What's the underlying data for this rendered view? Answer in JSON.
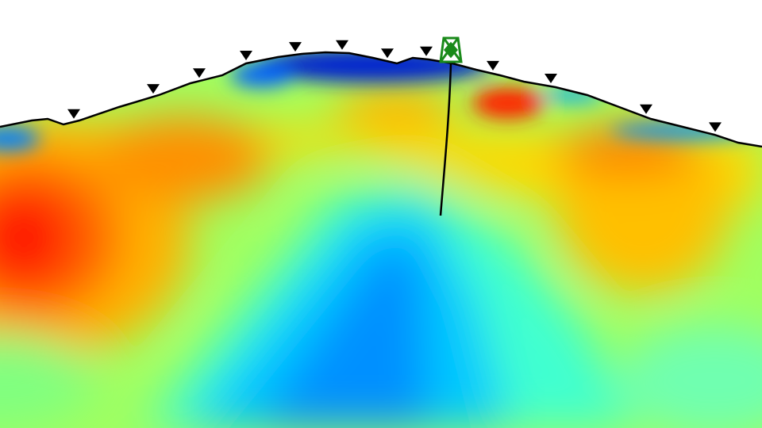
{
  "section": {
    "colormap": [
      "#0000c8",
      "#0060ff",
      "#00c0ff",
      "#40ffd0",
      "#a0ff60",
      "#ffff00",
      "#ffc000",
      "#ff7000",
      "#ff1000"
    ],
    "background": "#ffffff",
    "topography_color": "#000000",
    "station_marker": "inverted-triangle-icon",
    "station_count": 12,
    "well_icon": "drilling-rig-icon",
    "well_color": "#1a8a1a"
  }
}
